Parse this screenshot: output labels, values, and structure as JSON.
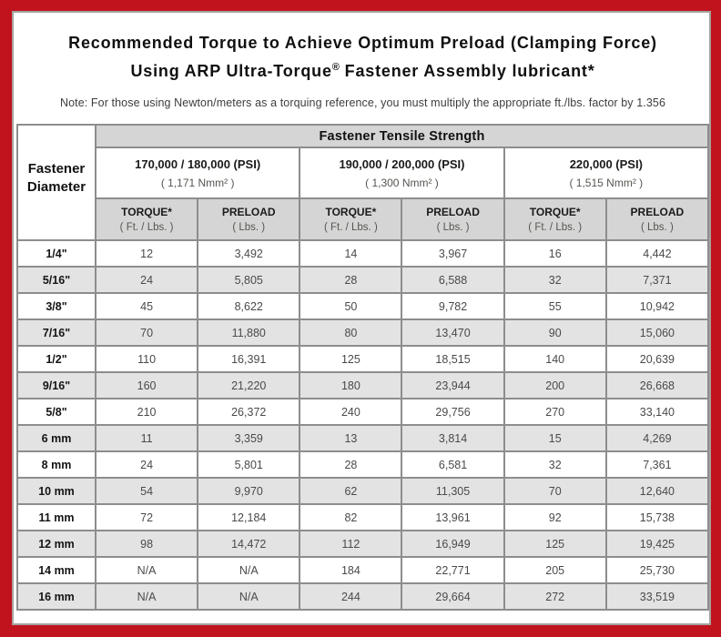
{
  "header": {
    "title_line1": "Recommended Torque to Achieve Optimum Preload (Clamping Force)",
    "title_line2_pre": "Using ARP Ultra-Torque",
    "title_line2_reg": "®",
    "title_line2_post": " Fastener Assembly lubricant*",
    "note": "Note: For those using Newton/meters as a torquing reference, you must multiply the appropriate ft./lbs. factor by 1.356"
  },
  "colors": {
    "frame_red": "#c1131e",
    "header_gray": "#d5d5d5",
    "stripe_gray": "#e3e3e3",
    "grid_gray": "#8d8d8d",
    "value_text": "#4a4a4a"
  },
  "chart_data": {
    "type": "table",
    "title": "Recommended Torque to Achieve Optimum Preload (Clamping Force) Using ARP Ultra-Torque® Fastener Assembly lubricant*",
    "corner_header": [
      "Fastener",
      "Diameter"
    ],
    "group_header": "Fastener Tensile Strength",
    "strength_groups": [
      {
        "psi_label": "170,000 / 180,000 (PSI)",
        "nmm_label": "( 1,171 Nmm² )"
      },
      {
        "psi_label": "190,000 / 200,000 (PSI)",
        "nmm_label": "( 1,300 Nmm² )"
      },
      {
        "psi_label": "220,000 (PSI)",
        "nmm_label": "( 1,515 Nmm² )"
      }
    ],
    "sub_headers": {
      "torque_label": "TORQUE*",
      "torque_unit": "( Ft. / Lbs. )",
      "preload_label": "PRELOAD",
      "preload_unit": "( Lbs. )"
    },
    "rows": [
      {
        "diameter": "1/4\"",
        "values": [
          "12",
          "3,492",
          "14",
          "3,967",
          "16",
          "4,442"
        ]
      },
      {
        "diameter": "5/16\"",
        "values": [
          "24",
          "5,805",
          "28",
          "6,588",
          "32",
          "7,371"
        ]
      },
      {
        "diameter": "3/8\"",
        "values": [
          "45",
          "8,622",
          "50",
          "9,782",
          "55",
          "10,942"
        ]
      },
      {
        "diameter": "7/16\"",
        "values": [
          "70",
          "11,880",
          "80",
          "13,470",
          "90",
          "15,060"
        ]
      },
      {
        "diameter": "1/2\"",
        "values": [
          "110",
          "16,391",
          "125",
          "18,515",
          "140",
          "20,639"
        ]
      },
      {
        "diameter": "9/16\"",
        "values": [
          "160",
          "21,220",
          "180",
          "23,944",
          "200",
          "26,668"
        ]
      },
      {
        "diameter": "5/8\"",
        "values": [
          "210",
          "26,372",
          "240",
          "29,756",
          "270",
          "33,140"
        ]
      },
      {
        "diameter": "6 mm",
        "values": [
          "11",
          "3,359",
          "13",
          "3,814",
          "15",
          "4,269"
        ]
      },
      {
        "diameter": "8 mm",
        "values": [
          "24",
          "5,801",
          "28",
          "6,581",
          "32",
          "7,361"
        ]
      },
      {
        "diameter": "10 mm",
        "values": [
          "54",
          "9,970",
          "62",
          "11,305",
          "70",
          "12,640"
        ]
      },
      {
        "diameter": "11 mm",
        "values": [
          "72",
          "12,184",
          "82",
          "13,961",
          "92",
          "15,738"
        ]
      },
      {
        "diameter": "12 mm",
        "values": [
          "98",
          "14,472",
          "112",
          "16,949",
          "125",
          "19,425"
        ]
      },
      {
        "diameter": "14 mm",
        "values": [
          "N/A",
          "N/A",
          "184",
          "22,771",
          "205",
          "25,730"
        ]
      },
      {
        "diameter": "16 mm",
        "values": [
          "N/A",
          "N/A",
          "244",
          "29,664",
          "272",
          "33,519"
        ]
      }
    ]
  }
}
